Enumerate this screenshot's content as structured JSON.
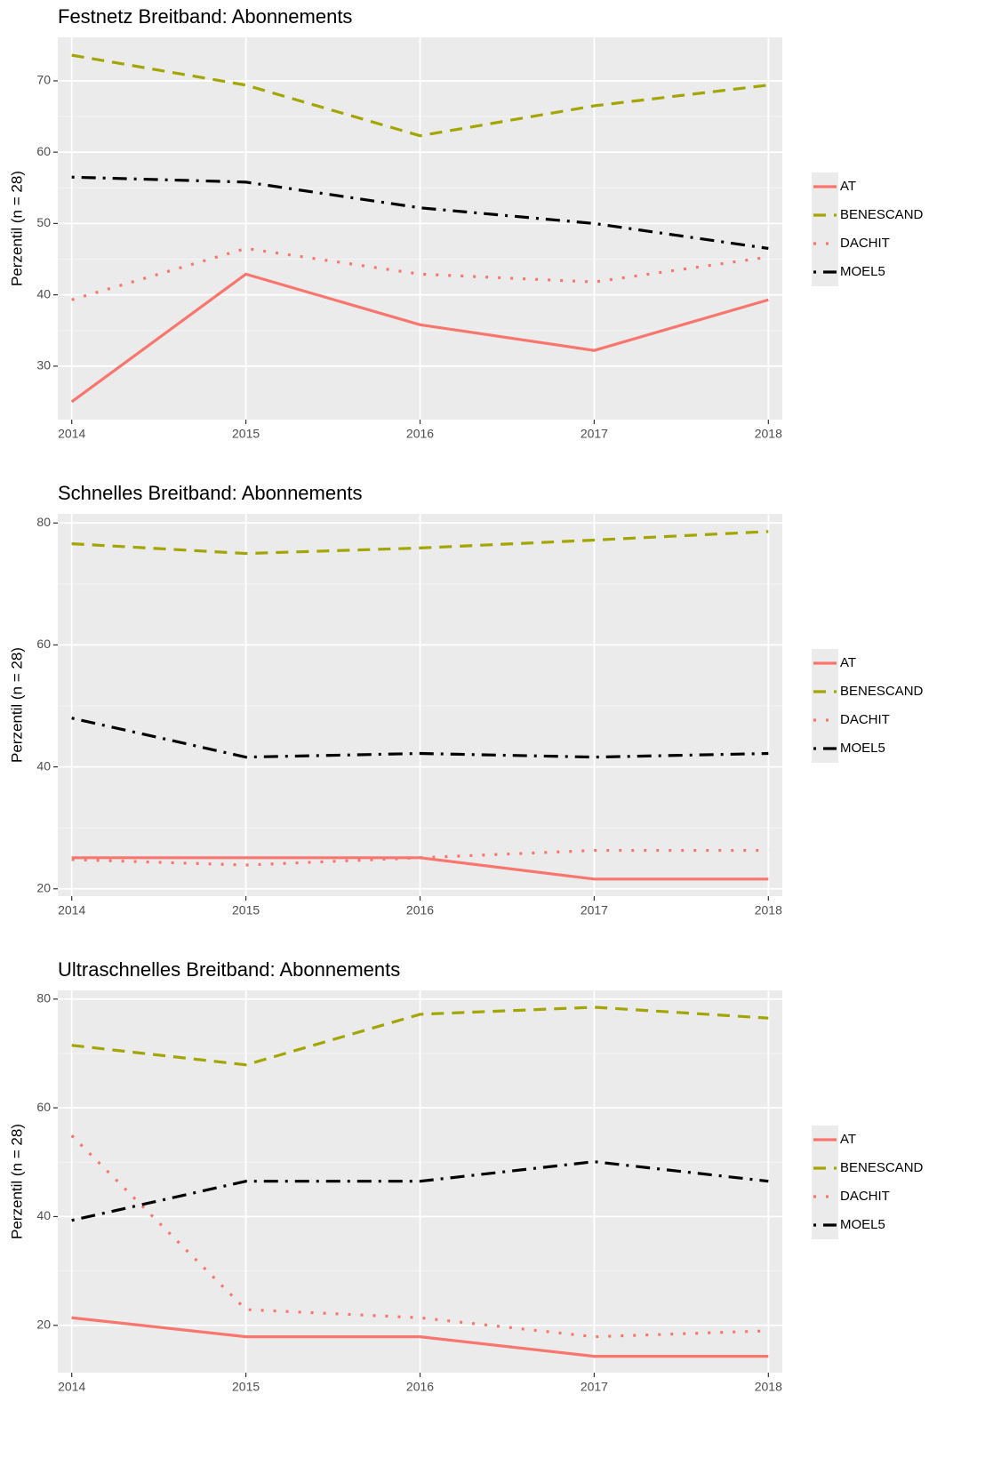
{
  "chart_data": [
    {
      "type": "line",
      "title": "Festnetz Breitband: Abonnements",
      "y_label": "Perzentil (n = 28)",
      "x": [
        2014,
        2015,
        2016,
        2017,
        2018
      ],
      "xlim": [
        2013.92,
        2018.08
      ],
      "xticks": [
        2014,
        2015,
        2016,
        2017,
        2018
      ],
      "ylim": [
        22.5,
        76.1
      ],
      "yticks": [
        30,
        40,
        50,
        60,
        70
      ],
      "grid": true,
      "series": [
        {
          "name": "AT",
          "color": "#f8766d",
          "dash": "solid",
          "values": [
            25.0,
            42.9,
            35.8,
            32.2,
            39.3
          ]
        },
        {
          "name": "BENESCAND",
          "color": "#a3a500",
          "dash": "dashed",
          "values": [
            73.6,
            69.4,
            62.3,
            66.5,
            69.4
          ]
        },
        {
          "name": "DACHIT",
          "color": "#f8766d",
          "dash": "dotted",
          "values": [
            39.3,
            46.5,
            42.9,
            41.8,
            45.3
          ]
        },
        {
          "name": "MOEL5",
          "color": "#000000",
          "dash": "dotdash",
          "values": [
            56.5,
            55.8,
            52.2,
            50.0,
            46.5
          ]
        }
      ]
    },
    {
      "type": "line",
      "title": "Schnelles Breitband: Abonnements",
      "y_label": "Perzentil (n = 28)",
      "x": [
        2014,
        2015,
        2016,
        2017,
        2018
      ],
      "xlim": [
        2013.92,
        2018.08
      ],
      "xticks": [
        2014,
        2015,
        2016,
        2017,
        2018
      ],
      "ylim": [
        18.8,
        81.5
      ],
      "yticks": [
        20,
        40,
        60,
        80
      ],
      "grid": true,
      "series": [
        {
          "name": "AT",
          "color": "#f8766d",
          "dash": "solid",
          "values": [
            25.1,
            25.1,
            25.1,
            21.6,
            21.6
          ]
        },
        {
          "name": "BENESCAND",
          "color": "#a3a500",
          "dash": "dashed",
          "values": [
            76.6,
            75.0,
            75.9,
            77.2,
            78.6
          ]
        },
        {
          "name": "DACHIT",
          "color": "#f8766d",
          "dash": "dotted",
          "values": [
            24.8,
            23.9,
            25.1,
            26.3,
            26.3
          ]
        },
        {
          "name": "MOEL5",
          "color": "#000000",
          "dash": "dotdash",
          "values": [
            48.0,
            41.6,
            42.2,
            41.6,
            42.2
          ]
        }
      ]
    },
    {
      "type": "line",
      "title": "Ultraschnelles Breitband: Abonnements",
      "y_label": "Perzentil (n = 28)",
      "x": [
        2014,
        2015,
        2016,
        2017,
        2018
      ],
      "xlim": [
        2013.92,
        2018.08
      ],
      "xticks": [
        2014,
        2015,
        2016,
        2017,
        2018
      ],
      "ylim": [
        11.3,
        81.6
      ],
      "yticks": [
        20,
        40,
        60,
        80
      ],
      "grid": true,
      "series": [
        {
          "name": "AT",
          "color": "#f8766d",
          "dash": "solid",
          "values": [
            21.4,
            17.9,
            17.9,
            14.3,
            14.3
          ]
        },
        {
          "name": "BENESCAND",
          "color": "#a3a500",
          "dash": "dashed",
          "values": [
            71.5,
            67.9,
            77.2,
            78.5,
            76.5
          ]
        },
        {
          "name": "DACHIT",
          "color": "#f8766d",
          "dash": "dotted",
          "values": [
            54.9,
            22.9,
            21.4,
            17.9,
            19.0
          ]
        },
        {
          "name": "MOEL5",
          "color": "#000000",
          "dash": "dotdash",
          "values": [
            39.3,
            46.5,
            46.5,
            50.1,
            46.5
          ]
        }
      ]
    }
  ]
}
